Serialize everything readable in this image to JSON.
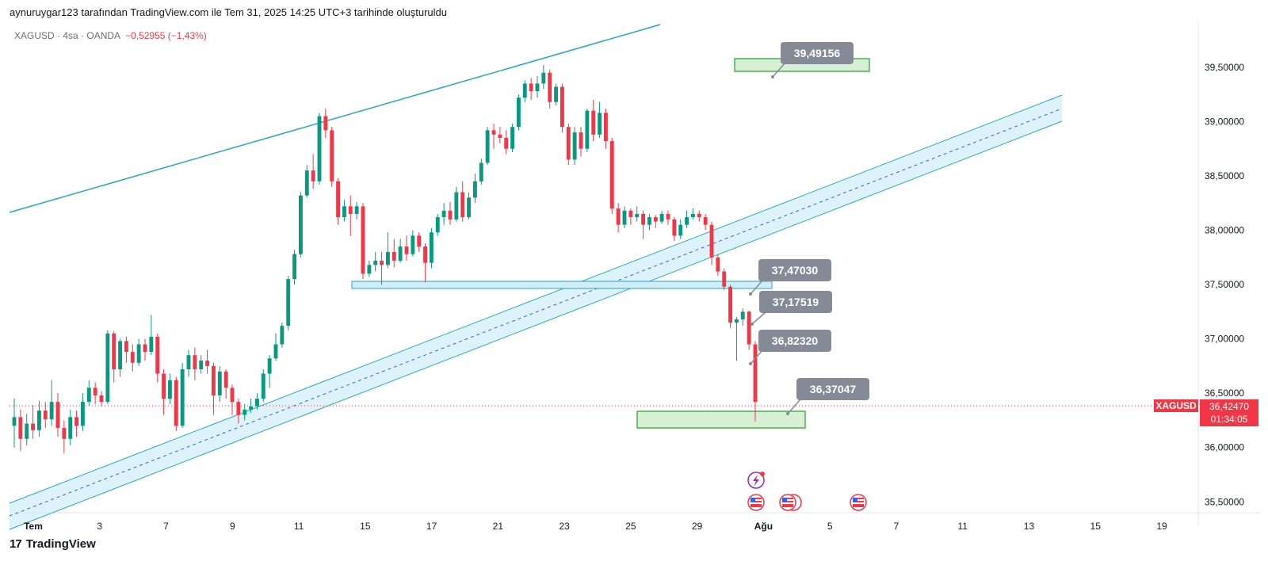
{
  "credit": "aynuruygar123 tarafından TradingView.com ile Tem 31, 2025 14:25 UTC+3 tarihinde oluşturuldu",
  "header": {
    "symbol": "XAGUSD · 4sa · OANDA",
    "change": "−0,52955 (−1,43%)"
  },
  "footer": {
    "brand": "TradingView",
    "logo": "17"
  },
  "colors": {
    "up": "#089981",
    "down": "#f23645",
    "channel": "#22a7c9",
    "channel_fill": "#cfeef7",
    "zone": "#4caf50",
    "zone_fill": "#d6f0d4",
    "callout": "#858b96"
  },
  "chart_data": {
    "type": "candlestick",
    "symbol": "XAGUSD",
    "interval": "4sa",
    "ylim": [
      35.4,
      39.9
    ],
    "y_ticks": [
      "35,50000",
      "36,00000",
      "36,50000",
      "37,00000",
      "37,50000",
      "38,00000",
      "38,50000",
      "39,00000",
      "39,50000"
    ],
    "y_tick_values": [
      35.5,
      36.0,
      36.5,
      37.0,
      37.5,
      38.0,
      38.5,
      39.0,
      39.5
    ],
    "x_ticks": [
      "Tem",
      "3",
      "7",
      "9",
      "11",
      "15",
      "17",
      "21",
      "23",
      "25",
      "29",
      "Ağu",
      "5",
      "7",
      "11",
      "13",
      "15",
      "19"
    ],
    "last_price": {
      "label": "XAGUSD",
      "value": "36,42470",
      "countdown": "01:34:05",
      "price": 36.4247
    },
    "callouts": [
      "39,49156",
      "37,47030",
      "37,17519",
      "36,82320",
      "36,37047"
    ],
    "candles": [
      [
        36.2,
        36.28,
        36.0,
        36.45
      ],
      [
        36.28,
        36.08,
        35.97,
        36.35
      ],
      [
        36.08,
        36.22,
        36.02,
        36.31
      ],
      [
        36.22,
        36.16,
        36.08,
        36.39
      ],
      [
        36.16,
        36.34,
        36.1,
        36.43
      ],
      [
        36.34,
        36.26,
        36.18,
        36.42
      ],
      [
        36.26,
        36.42,
        36.2,
        36.62
      ],
      [
        36.42,
        36.18,
        36.1,
        36.5
      ],
      [
        36.18,
        36.08,
        35.95,
        36.25
      ],
      [
        36.08,
        36.28,
        36.02,
        36.35
      ],
      [
        36.28,
        36.2,
        36.1,
        36.34
      ],
      [
        36.2,
        36.42,
        36.15,
        36.5
      ],
      [
        36.42,
        36.55,
        36.38,
        36.62
      ],
      [
        36.55,
        36.48,
        36.4,
        36.6
      ],
      [
        36.48,
        36.42,
        36.38,
        36.52
      ],
      [
        36.42,
        37.05,
        36.4,
        37.08
      ],
      [
        37.05,
        36.72,
        36.6,
        37.07
      ],
      [
        36.72,
        36.98,
        36.65,
        37.0
      ],
      [
        36.98,
        36.88,
        36.78,
        37.02
      ],
      [
        36.88,
        36.78,
        36.7,
        36.95
      ],
      [
        36.78,
        36.95,
        36.75,
        37.0
      ],
      [
        36.95,
        36.88,
        36.8,
        37.0
      ],
      [
        36.88,
        37.02,
        36.85,
        37.22
      ],
      [
        37.02,
        36.68,
        36.6,
        37.05
      ],
      [
        36.68,
        36.45,
        36.3,
        36.72
      ],
      [
        36.45,
        36.62,
        36.4,
        36.68
      ],
      [
        36.62,
        36.2,
        36.15,
        36.65
      ],
      [
        36.2,
        36.72,
        36.18,
        36.78
      ],
      [
        36.72,
        36.85,
        36.65,
        36.9
      ],
      [
        36.85,
        36.72,
        36.62,
        36.92
      ],
      [
        36.72,
        36.8,
        36.68,
        36.85
      ],
      [
        36.8,
        36.75,
        36.68,
        36.9
      ],
      [
        36.75,
        36.48,
        36.3,
        36.78
      ],
      [
        36.48,
        36.7,
        36.42,
        36.75
      ],
      [
        36.7,
        36.55,
        36.45,
        36.72
      ],
      [
        36.55,
        36.42,
        36.3,
        36.58
      ],
      [
        36.42,
        36.3,
        36.22,
        36.45
      ],
      [
        36.3,
        36.35,
        36.25,
        36.4
      ],
      [
        36.35,
        36.38,
        36.32,
        36.45
      ],
      [
        36.38,
        36.45,
        36.35,
        36.5
      ],
      [
        36.45,
        36.68,
        36.42,
        36.72
      ],
      [
        36.68,
        36.82,
        36.55,
        36.85
      ],
      [
        36.82,
        36.95,
        36.8,
        37.05
      ],
      [
        36.95,
        37.12,
        36.92,
        37.15
      ],
      [
        37.12,
        37.55,
        37.08,
        37.58
      ],
      [
        37.55,
        37.78,
        37.5,
        37.82
      ],
      [
        37.78,
        38.32,
        37.75,
        38.35
      ],
      [
        38.32,
        38.55,
        38.3,
        38.6
      ],
      [
        38.55,
        38.45,
        38.38,
        38.7
      ],
      [
        38.45,
        39.05,
        38.42,
        39.08
      ],
      [
        39.05,
        38.92,
        38.85,
        39.12
      ],
      [
        38.92,
        38.45,
        38.4,
        38.95
      ],
      [
        38.45,
        38.12,
        38.05,
        38.48
      ],
      [
        38.12,
        38.22,
        38.08,
        38.28
      ],
      [
        38.22,
        38.15,
        37.95,
        38.32
      ],
      [
        38.15,
        38.22,
        38.1,
        38.26
      ],
      [
        38.22,
        37.6,
        37.55,
        38.25
      ],
      [
        37.6,
        37.68,
        37.57,
        37.72
      ],
      [
        37.68,
        37.72,
        37.62,
        37.8
      ],
      [
        37.72,
        37.68,
        37.5,
        37.8
      ],
      [
        37.68,
        37.8,
        37.65,
        37.98
      ],
      [
        37.8,
        37.72,
        37.66,
        37.92
      ],
      [
        37.72,
        37.85,
        37.7,
        37.92
      ],
      [
        37.85,
        37.78,
        37.72,
        37.95
      ],
      [
        37.78,
        37.95,
        37.76,
        38.0
      ],
      [
        37.95,
        37.85,
        37.8,
        37.98
      ],
      [
        37.85,
        37.7,
        37.52,
        37.88
      ],
      [
        37.7,
        37.98,
        37.65,
        38.02
      ],
      [
        37.98,
        38.12,
        37.95,
        38.15
      ],
      [
        38.12,
        38.18,
        38.05,
        38.25
      ],
      [
        38.18,
        38.1,
        38.05,
        38.26
      ],
      [
        38.1,
        38.35,
        38.08,
        38.4
      ],
      [
        38.35,
        38.12,
        38.08,
        38.45
      ],
      [
        38.12,
        38.3,
        38.1,
        38.35
      ],
      [
        38.3,
        38.45,
        38.25,
        38.52
      ],
      [
        38.45,
        38.62,
        38.42,
        38.66
      ],
      [
        38.62,
        38.92,
        38.6,
        38.95
      ],
      [
        38.92,
        38.88,
        38.75,
        38.98
      ],
      [
        38.88,
        38.85,
        38.8,
        38.95
      ],
      [
        38.85,
        38.75,
        38.7,
        38.92
      ],
      [
        38.75,
        38.95,
        38.72,
        38.98
      ],
      [
        38.95,
        39.22,
        38.92,
        39.25
      ],
      [
        39.22,
        39.35,
        39.18,
        39.38
      ],
      [
        39.35,
        39.28,
        39.2,
        39.4
      ],
      [
        39.28,
        39.35,
        39.22,
        39.42
      ],
      [
        39.35,
        39.45,
        39.3,
        39.52
      ],
      [
        39.45,
        39.18,
        39.12,
        39.48
      ],
      [
        39.18,
        39.32,
        39.15,
        39.35
      ],
      [
        39.32,
        38.95,
        38.9,
        39.35
      ],
      [
        38.95,
        38.65,
        38.6,
        38.98
      ],
      [
        38.65,
        38.9,
        38.6,
        38.95
      ],
      [
        38.9,
        38.75,
        38.68,
        38.95
      ],
      [
        38.75,
        39.1,
        38.72,
        39.12
      ],
      [
        39.1,
        38.88,
        38.82,
        39.2
      ],
      [
        38.88,
        39.08,
        38.85,
        39.18
      ],
      [
        39.08,
        38.82,
        38.75,
        39.12
      ],
      [
        38.82,
        38.2,
        38.15,
        38.85
      ],
      [
        38.2,
        38.05,
        37.98,
        38.25
      ],
      [
        38.05,
        38.18,
        38.02,
        38.22
      ],
      [
        38.18,
        38.12,
        38.05,
        38.2
      ],
      [
        38.12,
        38.15,
        38.08,
        38.22
      ],
      [
        38.15,
        38.05,
        37.92,
        38.18
      ],
      [
        38.05,
        38.12,
        38.0,
        38.15
      ],
      [
        38.12,
        38.08,
        38.02,
        38.14
      ],
      [
        38.08,
        38.15,
        38.06,
        38.18
      ],
      [
        38.15,
        38.1,
        38.05,
        38.18
      ],
      [
        38.1,
        37.95,
        37.9,
        38.12
      ],
      [
        37.95,
        38.05,
        37.92,
        38.1
      ],
      [
        38.05,
        38.12,
        38.02,
        38.18
      ],
      [
        38.12,
        38.15,
        38.1,
        38.2
      ],
      [
        38.15,
        38.12,
        38.08,
        38.18
      ],
      [
        38.12,
        38.05,
        38.0,
        38.15
      ],
      [
        38.05,
        37.75,
        37.68,
        38.08
      ],
      [
        37.75,
        37.62,
        37.58,
        37.78
      ],
      [
        37.62,
        37.48,
        37.45,
        37.65
      ],
      [
        37.48,
        37.15,
        37.1,
        37.5
      ],
      [
        37.15,
        37.18,
        36.8,
        37.2
      ],
      [
        37.18,
        37.25,
        37.12,
        37.28
      ],
      [
        37.25,
        36.95,
        36.9,
        37.26
      ],
      [
        36.95,
        36.42,
        36.24,
        36.98
      ]
    ]
  }
}
